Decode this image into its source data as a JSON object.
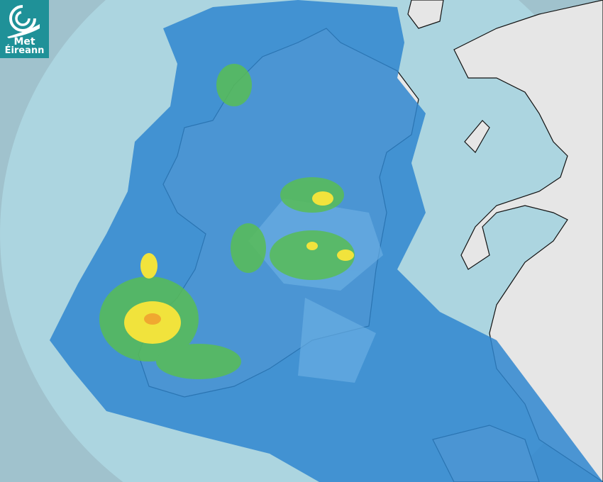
{
  "logo": {
    "line1": "Met",
    "line2": "Éireann"
  },
  "map": {
    "type": "rainfall-radar",
    "colors": {
      "outside_range": "#a0c2cd",
      "sea": "#acd5e0",
      "land": "#eaeaea",
      "rain_light": "#6fb3e6",
      "rain_moderate": "#2f86cf",
      "rain_green": "#58bd55",
      "rain_yellow": "#f1e33c",
      "rain_orange": "#f0a830",
      "brand": "#1f9198"
    }
  }
}
